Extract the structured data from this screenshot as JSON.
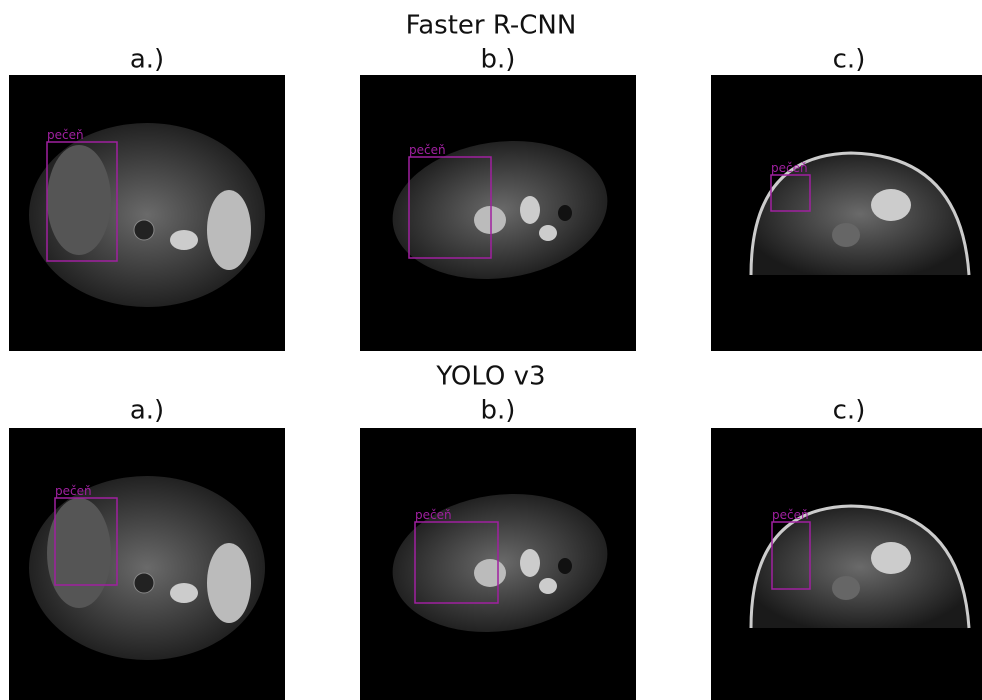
{
  "rows": [
    {
      "title": "Faster R-CNN",
      "panels": [
        {
          "label": "a.)",
          "box_label": "pečeň"
        },
        {
          "label": "b.)",
          "box_label": "pečeň"
        },
        {
          "label": "c.)",
          "box_label": "pečeň"
        }
      ]
    },
    {
      "title": "YOLO v3",
      "panels": [
        {
          "label": "a.)",
          "box_label": "pečeň"
        },
        {
          "label": "b.)",
          "box_label": "pečeň"
        },
        {
          "label": "c.)",
          "box_label": "pečeň"
        }
      ]
    }
  ]
}
